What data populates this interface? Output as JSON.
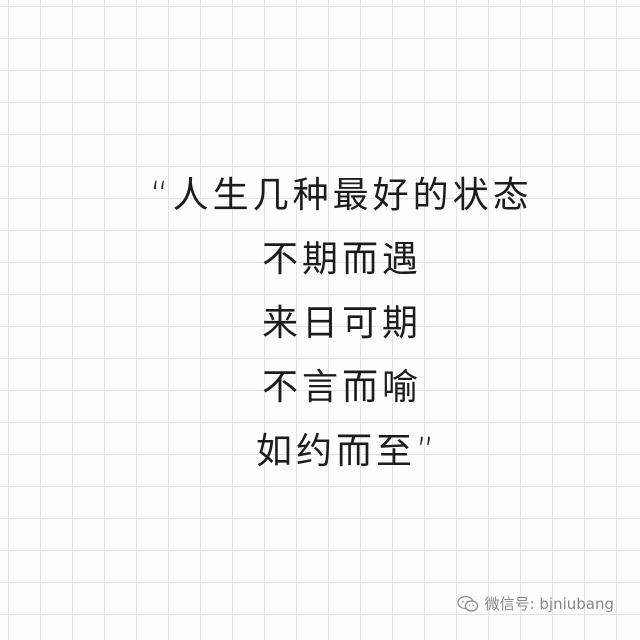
{
  "poem": {
    "lines": [
      "“人生几种最好的状态",
      "不期而遇",
      "来日可期",
      "不言而喻",
      "如约而至”"
    ]
  },
  "watermark": {
    "text": "微信号: bjniubang",
    "icon": "wechat-icon"
  },
  "colors": {
    "grid": "#e3e3e3",
    "text": "#1c1c1c",
    "watermark": "#7a7a7a"
  }
}
